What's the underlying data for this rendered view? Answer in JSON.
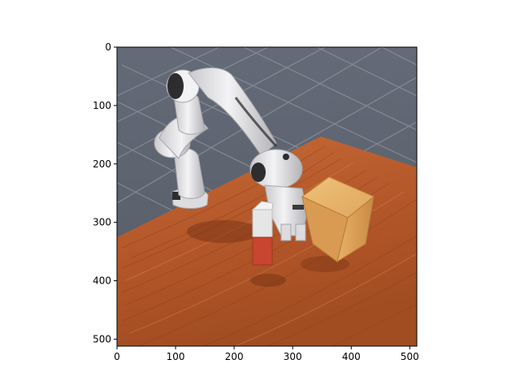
{
  "figure": {
    "background": "#ffffff",
    "image_subject": "simulated robot arm on wooden table picking a red-and-white block next to a cardboard box"
  },
  "axes": {
    "x_range": [
      0,
      512
    ],
    "y_range": [
      0,
      512
    ],
    "y_inverted": true,
    "x_ticks": [
      {
        "value": 0,
        "label": "0"
      },
      {
        "value": 100,
        "label": "100"
      },
      {
        "value": 200,
        "label": "200"
      },
      {
        "value": 300,
        "label": "300"
      },
      {
        "value": 400,
        "label": "400"
      },
      {
        "value": 500,
        "label": "500"
      }
    ],
    "y_ticks": [
      {
        "value": 0,
        "label": "0"
      },
      {
        "value": 100,
        "label": "100"
      },
      {
        "value": 200,
        "label": "200"
      },
      {
        "value": 300,
        "label": "300"
      },
      {
        "value": 400,
        "label": "400"
      },
      {
        "value": 500,
        "label": "500"
      }
    ]
  },
  "colors": {
    "sky": "#5e6573",
    "grid_floor": "#8a8f98",
    "table": "#b5582a",
    "table_dark": "#8e3f1c",
    "table_light": "#cd7443",
    "robot": "#e8e8ea",
    "robot_shade": "#b9b9bd",
    "robot_dark": "#2d2d2f",
    "box": "#e0a85e",
    "box_shade": "#c98b43",
    "block_red": "#c9452f",
    "block_white": "#e6e6e6"
  }
}
